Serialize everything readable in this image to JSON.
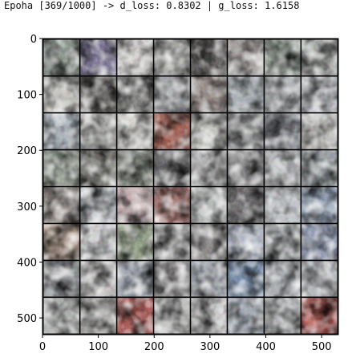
{
  "output": {
    "log_line": "Epoha [369/1000] -> d_loss: 0.8302 | g_loss: 1.6158"
  },
  "chart_data": {
    "type": "heatmap",
    "title": "",
    "xlabel": "",
    "ylabel": "",
    "xlim": [
      0,
      530
    ],
    "ylim": [
      530,
      0
    ],
    "xticks": [
      0,
      100,
      200,
      300,
      400,
      500
    ],
    "yticks": [
      0,
      100,
      200,
      300,
      400,
      500
    ],
    "grid": false,
    "legend": "none",
    "image_grid": {
      "rows": 8,
      "cols": 8,
      "tile_size": 64,
      "gap": 2,
      "gap_color": "#000000",
      "tiles": [
        [
          "#7f8a80",
          "#6a6288",
          "#d9d6d3",
          "#a8a8a4",
          "#4e4b4a",
          "#a39c9a",
          "#8e9a8e",
          "#9ca09c"
        ],
        [
          "#bcbbb6",
          "#5a5654",
          "#6c6c6a",
          "#a0a3a6",
          "#8a7c78",
          "#9ea8ad",
          "#888c8e",
          "#c8cbd0"
        ],
        [
          "#a9b4bd",
          "#c9c9c6",
          "#d6d5d0",
          "#9a4636",
          "#c7c8c3",
          "#8d8f90",
          "#6c6f78",
          "#c6c6c3"
        ],
        [
          "#8e998a",
          "#6f6f68",
          "#6d7468",
          "#5a5a5c",
          "#b0b1b1",
          "#7c7c7e",
          "#b6b8b9",
          "#8f979d"
        ],
        [
          "#746a66",
          "#b9bec4",
          "#c3a5a8",
          "#9a5e58",
          "#b2b6b5",
          "#5f5d5f",
          "#c2c6cb",
          "#8a9cb4"
        ],
        [
          "#b59a86",
          "#cacccd",
          "#8a9a7c",
          "#a4a4a4",
          "#7f7c7c",
          "#a8b0c0",
          "#b8bcbe",
          "#8a96b2"
        ],
        [
          "#878a8e",
          "#b9b7b6",
          "#9aa1ae",
          "#8f8d8e",
          "#a7aeb8",
          "#6a86a8",
          "#aaaeb3",
          "#b5b9bd"
        ],
        [
          "#a7aaa7",
          "#a2a09d",
          "#a8433e",
          "#bdbdbb",
          "#cfcfce",
          "#9fa8b4",
          "#aeb0b2",
          "#b5403a"
        ]
      ]
    }
  }
}
